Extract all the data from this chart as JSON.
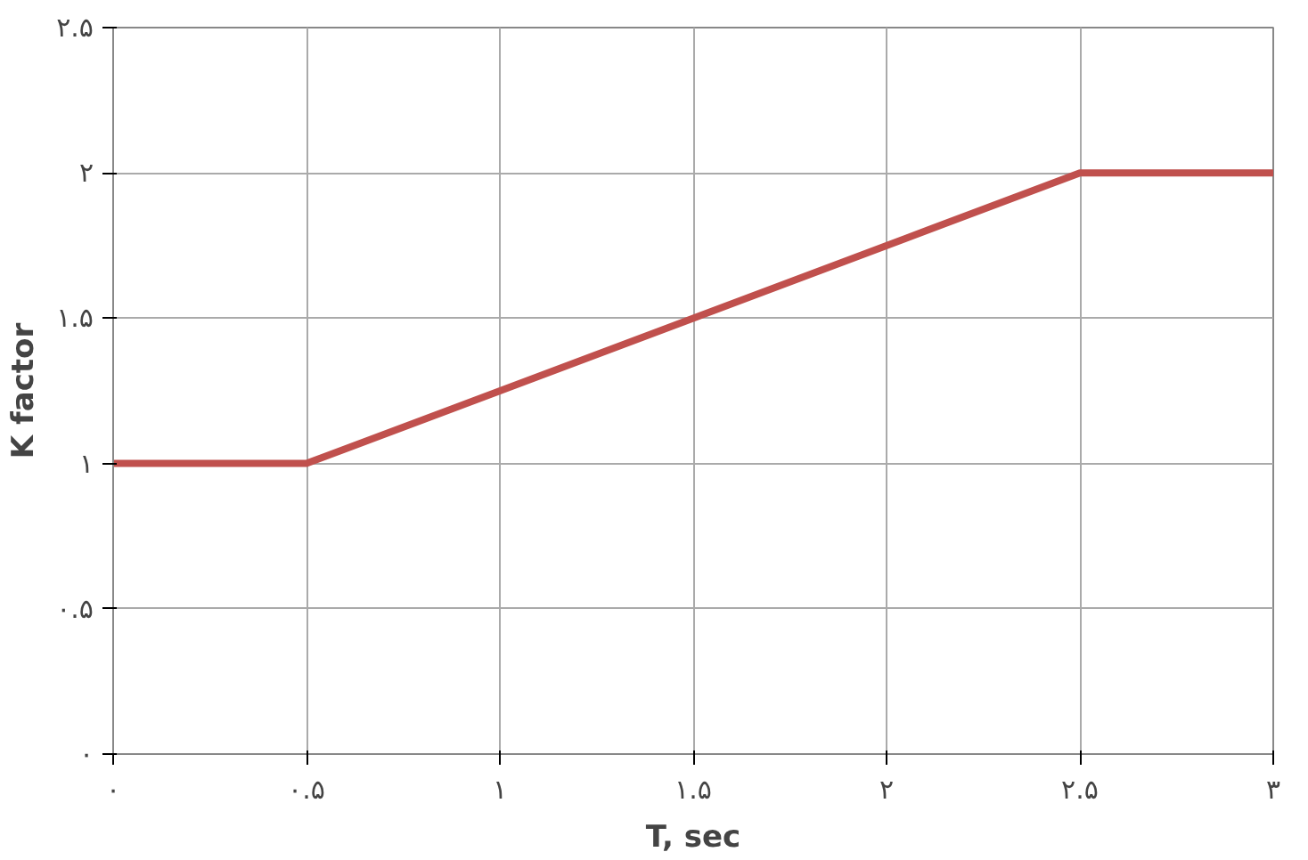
{
  "chart_data": {
    "type": "line",
    "xlabel": "T, sec",
    "ylabel": "K factor",
    "x": [
      0,
      0.5,
      2.5,
      3
    ],
    "series": [
      {
        "color": "#c0504d",
        "values": [
          1,
          1,
          2,
          2
        ]
      }
    ],
    "xlim": [
      0,
      3
    ],
    "ylim": [
      0,
      2.5
    ],
    "xticks": [
      {
        "value": 0,
        "label": "۰"
      },
      {
        "value": 0.5,
        "label": "۰.۵"
      },
      {
        "value": 1,
        "label": "۱"
      },
      {
        "value": 1.5,
        "label": "۱.۵"
      },
      {
        "value": 2,
        "label": "۲"
      },
      {
        "value": 2.5,
        "label": "۲.۵"
      },
      {
        "value": 3,
        "label": "۳"
      }
    ],
    "yticks": [
      {
        "value": 0,
        "label": "۰"
      },
      {
        "value": 0.5,
        "label": "۰.۵"
      },
      {
        "value": 1,
        "label": "۱"
      },
      {
        "value": 1.5,
        "label": "۱.۵"
      },
      {
        "value": 2,
        "label": "۲"
      },
      {
        "value": 2.5,
        "label": "۲.۵"
      }
    ],
    "grid": true,
    "marker": "none",
    "line_style": "solid"
  }
}
